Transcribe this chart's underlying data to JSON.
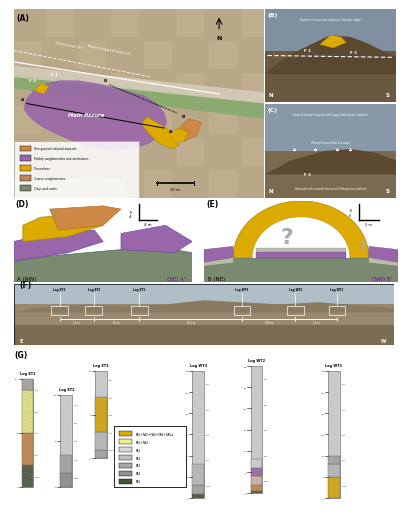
{
  "bg_color": "#FFFFFF",
  "map_colors": {
    "fine_grained": "#CC8844",
    "pebbly_conglomerates": "#9966AA",
    "travertines": "#DDAA00",
    "coarse_conglomerates": "#BB8855",
    "clays_marls": "#7A8A70",
    "satellite_bg": "#A09070"
  },
  "legend_labels": [
    "Fine grained colluvial deposits",
    "Pebbly conglomerates and sandstones",
    "Travertines",
    "Coarse conglomerates",
    "Clays and marls"
  ],
  "legend_colors": [
    "#CC8844",
    "#9966AA",
    "#DDAA00",
    "#BB8855",
    "#7A8A70"
  ],
  "cross_section_colors": {
    "travertine": "#DDAA00",
    "purple": "#9966AA",
    "clay_green": "#7A8A70",
    "fine_brown": "#CC8844",
    "gray_light": "#BBBBAA"
  },
  "purple_text": "#7700AA",
  "photo_sky": "#9AABB8",
  "photo_ground": "#7A6A50",
  "photo_hill": "#5C4A2A"
}
